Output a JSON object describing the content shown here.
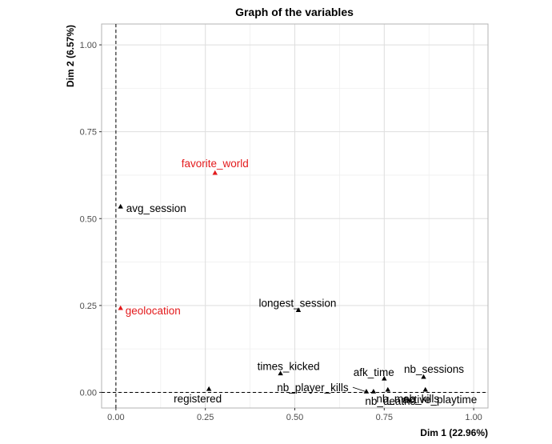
{
  "chart_data": {
    "type": "scatter",
    "title": "Graph of the variables",
    "xlabel": "Dim 1 (22.96%)",
    "ylabel": "Dim 2 (6.57%)",
    "xlim": [
      -0.04,
      1.04
    ],
    "ylim": [
      -0.045,
      1.06
    ],
    "x_ticks": [
      "0.00",
      "0.25",
      "0.50",
      "0.75",
      "1.00"
    ],
    "y_ticks": [
      "0.00",
      "0.25",
      "0.50",
      "0.75",
      "1.00"
    ],
    "grid": true,
    "reference_lines": {
      "x": 0,
      "y": 0,
      "style": "dashed"
    },
    "colors": {
      "active": "#000000",
      "supplementary": "#e31a1c"
    },
    "points": [
      {
        "name": "favorite_world",
        "x": 0.277,
        "y": 0.632,
        "group": "supplementary"
      },
      {
        "name": "avg_session",
        "x": 0.013,
        "y": 0.535,
        "group": "active"
      },
      {
        "name": "geolocation",
        "x": 0.013,
        "y": 0.243,
        "group": "supplementary"
      },
      {
        "name": "longest_session",
        "x": 0.51,
        "y": 0.237,
        "group": "active"
      },
      {
        "name": "times_kicked",
        "x": 0.46,
        "y": 0.055,
        "group": "active"
      },
      {
        "name": "afk_time",
        "x": 0.75,
        "y": 0.04,
        "group": "active"
      },
      {
        "name": "nb_sessions",
        "x": 0.86,
        "y": 0.045,
        "group": "active"
      },
      {
        "name": "nb_player_kills",
        "x": 0.7,
        "y": 0.003,
        "group": "active"
      },
      {
        "name": "registered",
        "x": 0.26,
        "y": 0.01,
        "group": "active"
      },
      {
        "name": "nb_deaths",
        "x": 0.72,
        "y": 0.003,
        "group": "active"
      },
      {
        "name": "nb_mob_kills",
        "x": 0.76,
        "y": 0.008,
        "group": "active"
      },
      {
        "name": "active_playtime",
        "x": 0.865,
        "y": 0.008,
        "group": "active"
      }
    ]
  }
}
